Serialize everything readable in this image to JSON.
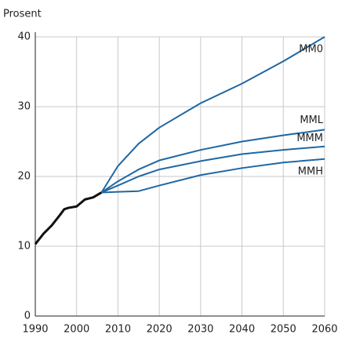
{
  "chart_data": {
    "type": "line",
    "y_label": "Prosent",
    "x": [
      1990,
      1992,
      1994,
      1996,
      1997,
      1998,
      2000,
      2002,
      2004,
      2006,
      2010,
      2015,
      2020,
      2030,
      2040,
      2050,
      2060
    ],
    "series": [
      {
        "color": "#111111",
        "values": [
          10.3,
          11.8,
          13,
          14.5,
          15.3,
          15.5,
          15.7,
          16.7,
          17,
          17.7,
          null,
          null,
          null,
          null,
          null,
          null,
          null
        ]
      },
      {
        "name": "MM0",
        "color": "#1f67a3",
        "values": [
          null,
          null,
          null,
          null,
          null,
          null,
          null,
          null,
          null,
          17.7,
          21.5,
          24.7,
          27,
          30.5,
          33.3,
          36.5,
          40
        ]
      },
      {
        "name": "MML",
        "color": "#1f67a3",
        "values": [
          null,
          null,
          null,
          null,
          null,
          null,
          null,
          null,
          null,
          17.7,
          19.3,
          21,
          22.3,
          23.8,
          25,
          25.9,
          26.7
        ]
      },
      {
        "name": "MMM",
        "color": "#1f67a3",
        "values": [
          null,
          null,
          null,
          null,
          null,
          null,
          null,
          null,
          null,
          17.7,
          18.7,
          20,
          21,
          22.2,
          23.2,
          23.8,
          24.3
        ]
      },
      {
        "name": "MMH",
        "color": "#1f67a3",
        "values": [
          null,
          null,
          null,
          null,
          null,
          null,
          null,
          null,
          null,
          17.7,
          17.8,
          17.9,
          18.7,
          20.2,
          21.2,
          22,
          22.5
        ]
      }
    ],
    "xlim": [
      1990,
      2060
    ],
    "xticks": [
      1990,
      2000,
      2010,
      2020,
      2030,
      2040,
      2050,
      2060
    ],
    "ylim": [
      0,
      40
    ],
    "yticks": [
      0,
      10,
      20,
      30,
      40
    ],
    "grid": true
  }
}
